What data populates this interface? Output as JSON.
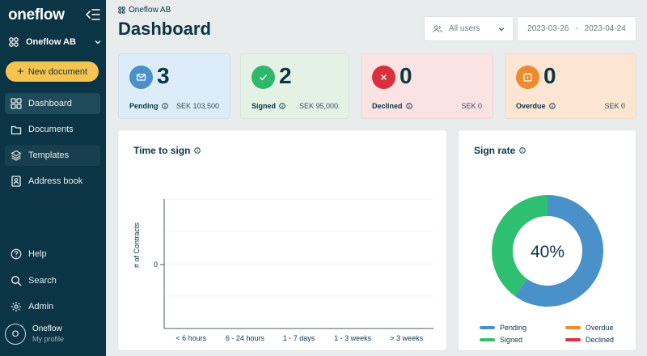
{
  "sidebar": {
    "logo": "oneflow",
    "workspace": "Oneflow AB",
    "new_document": "New document",
    "nav": [
      {
        "label": "Dashboard",
        "icon": "dashboard-icon",
        "active": true
      },
      {
        "label": "Documents",
        "icon": "documents-icon"
      },
      {
        "label": "Templates",
        "icon": "templates-icon"
      },
      {
        "label": "Address book",
        "icon": "address-book-icon"
      }
    ],
    "bottom_nav": [
      {
        "label": "Help",
        "icon": "help-icon"
      },
      {
        "label": "Search",
        "icon": "search-icon"
      },
      {
        "label": "Admin",
        "icon": "gear-icon"
      }
    ],
    "profile": {
      "initial": "O",
      "name": "Oneflow",
      "subtitle": "My profile"
    }
  },
  "header": {
    "breadcrumb": "Oneflow AB",
    "title": "Dashboard",
    "users_filter": "All users",
    "date_from": "2023-03-26",
    "date_separator": "-",
    "date_to": "2023-04-24"
  },
  "stats": [
    {
      "key": "pending",
      "count": "3",
      "label": "Pending",
      "amount": "SEK 103,500",
      "bg": "#dcedf9",
      "icon_bg": "#4a90c9",
      "icon": "envelope-icon"
    },
    {
      "key": "signed",
      "count": "2",
      "label": "Signed",
      "amount": "SEK 95,000",
      "bg": "#e4f2e6",
      "icon_bg": "#2fb86b",
      "icon": "check-icon"
    },
    {
      "key": "declined",
      "count": "0",
      "label": "Declined",
      "amount": "SEK 0",
      "bg": "#fbe3e4",
      "icon_bg": "#d9303d",
      "icon": "x-icon"
    },
    {
      "key": "overdue",
      "count": "0",
      "label": "Overdue",
      "amount": "SEK 0",
      "bg": "#fce6d3",
      "icon_bg": "#ef8b2c",
      "icon": "calendar-icon"
    }
  ],
  "time_to_sign": {
    "title": "Time to sign",
    "chart_data": {
      "type": "bar",
      "ylabel": "# of Contracts",
      "yticks": [
        "0"
      ],
      "categories": [
        "< 6 hours",
        "6 - 24 hours",
        "1 - 7 days",
        "1 - 3 weeks",
        "> 3 weeks"
      ],
      "values": [
        0,
        0,
        0,
        0,
        0
      ]
    }
  },
  "sign_rate": {
    "title": "Sign rate",
    "center_label": "40%",
    "chart_data": {
      "type": "pie",
      "slices": [
        {
          "name": "Pending",
          "value": 3,
          "color": "#4a90c9"
        },
        {
          "name": "Signed",
          "value": 2,
          "color": "#2fbf71"
        },
        {
          "name": "Overdue",
          "value": 0,
          "color": "#ef8b2c"
        },
        {
          "name": "Declined",
          "value": 0,
          "color": "#d9303d"
        }
      ]
    },
    "legend": [
      {
        "label": "Pending",
        "color": "#4a90c9"
      },
      {
        "label": "Overdue",
        "color": "#ef8b2c"
      },
      {
        "label": "Signed",
        "color": "#2fbf71"
      },
      {
        "label": "Declined",
        "color": "#d9303d"
      }
    ]
  }
}
